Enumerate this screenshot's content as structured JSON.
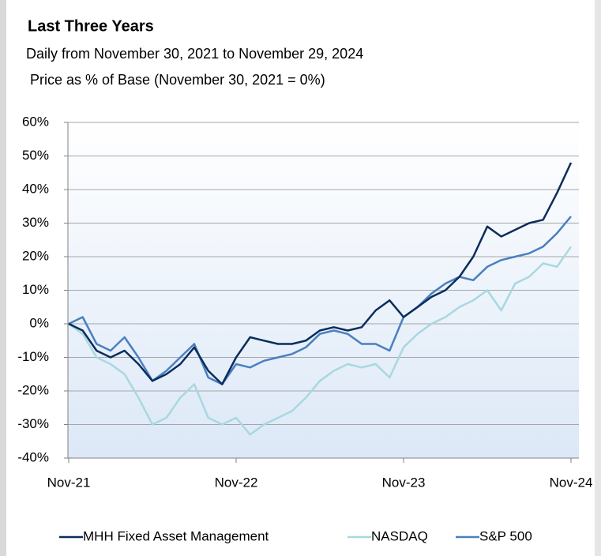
{
  "chart_data": {
    "type": "line",
    "title": "Last Three Years",
    "subtitle": "Daily from November 30, 2021 to November 29, 2024",
    "y_label": "Price as % of Base (November 30, 2021 = 0%)",
    "categories": [
      "Nov-21",
      null,
      null,
      null,
      null,
      null,
      null,
      null,
      null,
      null,
      null,
      null,
      "Nov-22",
      null,
      null,
      null,
      null,
      null,
      null,
      null,
      null,
      null,
      null,
      null,
      "Nov-23",
      null,
      null,
      null,
      null,
      null,
      null,
      null,
      null,
      null,
      null,
      null,
      "Nov-24"
    ],
    "series": [
      {
        "name": "MHH Fixed Asset Management",
        "color": "#0b2d5b",
        "values": [
          0,
          -2,
          -8,
          -10,
          -8,
          -12,
          -17,
          -15,
          -12,
          -7,
          -14,
          -18,
          -10,
          -4,
          -5,
          -6,
          -6,
          -5,
          -2,
          -1,
          -2,
          -1,
          4,
          7,
          2,
          5,
          8,
          10,
          14,
          20,
          29,
          26,
          28,
          30,
          31,
          39,
          48
        ]
      },
      {
        "name": "NASDAQ",
        "color": "#a8d8e0",
        "values": [
          0,
          -3,
          -10,
          -12,
          -15,
          -22,
          -30,
          -28,
          -22,
          -18,
          -28,
          -30,
          -28,
          -33,
          -30,
          -28,
          -26,
          -22,
          -17,
          -14,
          -12,
          -13,
          -12,
          -16,
          -7,
          -3,
          0,
          2,
          5,
          7,
          10,
          4,
          12,
          14,
          18,
          17,
          23
        ]
      },
      {
        "name": "S&P 500",
        "color": "#4a7fc1",
        "values": [
          0,
          2,
          -6,
          -8,
          -4,
          -10,
          -17,
          -14,
          -10,
          -6,
          -16,
          -18,
          -12,
          -13,
          -11,
          -10,
          -9,
          -7,
          -3,
          -2,
          -3,
          -6,
          -6,
          -8,
          2,
          5,
          9,
          12,
          14,
          13,
          17,
          19,
          20,
          21,
          23,
          27,
          32
        ]
      }
    ],
    "ylim": [
      -40,
      60
    ],
    "yticks": [
      {
        "value": -40,
        "label": "-40%"
      },
      {
        "value": -30,
        "label": "-30%"
      },
      {
        "value": -20,
        "label": "-20%"
      },
      {
        "value": -10,
        "label": "-10%"
      },
      {
        "value": 0,
        "label": "0%"
      },
      {
        "value": 10,
        "label": "10%"
      },
      {
        "value": 20,
        "label": "20%"
      },
      {
        "value": 30,
        "label": "30%"
      },
      {
        "value": 40,
        "label": "40%"
      },
      {
        "value": 50,
        "label": "50%"
      },
      {
        "value": 60,
        "label": "60%"
      }
    ],
    "grid": true,
    "legend": "bottom"
  }
}
